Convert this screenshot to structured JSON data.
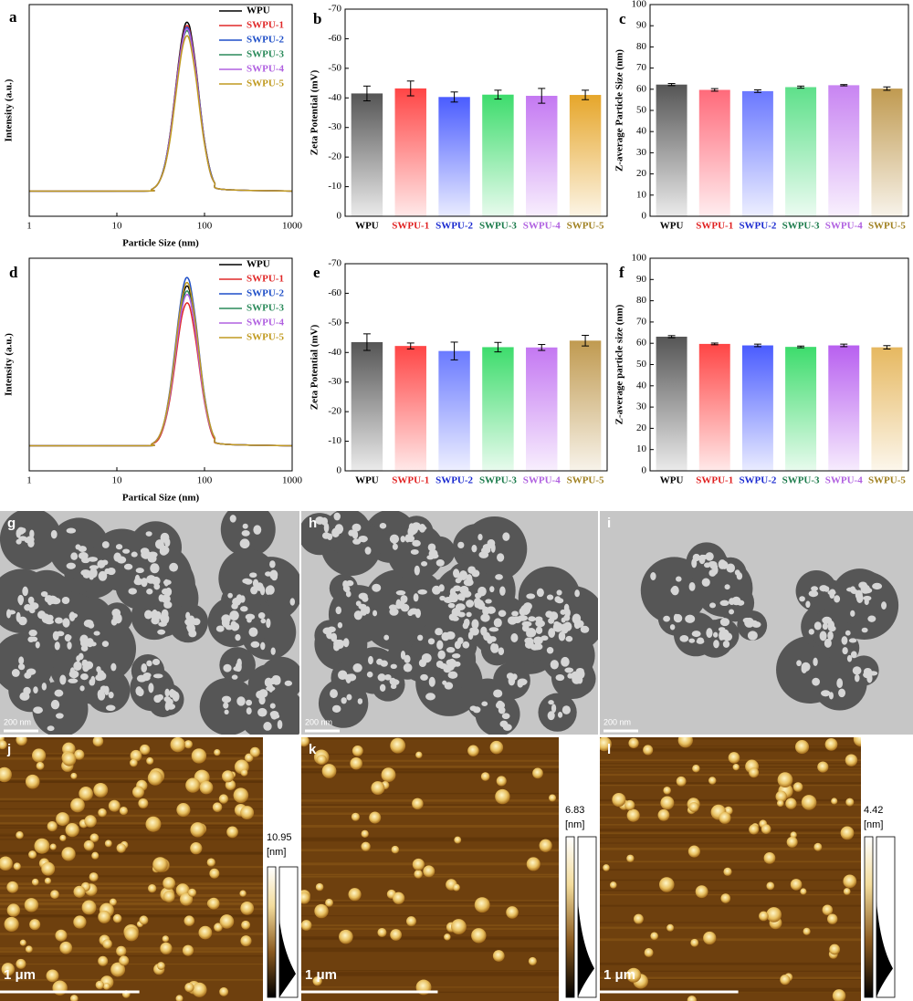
{
  "chart_data": [
    {
      "type": "line",
      "panel": "a",
      "xlabel": "Particle Size (nm)",
      "ylabel": "Intensity (a.u.)",
      "xscale": "log",
      "xlim": [
        1,
        1000
      ],
      "xticks": [
        1,
        10,
        100,
        1000
      ],
      "ylim": [
        -0.15,
        1.11
      ],
      "x": [
        1,
        20,
        25,
        30,
        35,
        40,
        45,
        50,
        55,
        60,
        65,
        70,
        80,
        90,
        100,
        115,
        130,
        160,
        1000
      ],
      "series": [
        {
          "name": "WPU",
          "color": "#000000",
          "values": [
            0,
            0,
            0.01,
            0.05,
            0.15,
            0.32,
            0.53,
            0.74,
            0.9,
            0.99,
            1,
            0.94,
            0.73,
            0.49,
            0.3,
            0.13,
            0.05,
            0.01,
            0
          ]
        },
        {
          "name": "SWPU-1",
          "color": "#e02828",
          "values": [
            0,
            0,
            0.01,
            0.05,
            0.15,
            0.31,
            0.52,
            0.73,
            0.88,
            0.97,
            0.98,
            0.92,
            0.72,
            0.48,
            0.29,
            0.13,
            0.05,
            0.01,
            0
          ]
        },
        {
          "name": "SWPU-2",
          "color": "#1f4fc8",
          "values": [
            0,
            0,
            0.01,
            0.05,
            0.15,
            0.31,
            0.51,
            0.72,
            0.87,
            0.96,
            0.97,
            0.91,
            0.71,
            0.48,
            0.29,
            0.13,
            0.05,
            0.01,
            0
          ]
        },
        {
          "name": "SWPU-3",
          "color": "#2a8a5a",
          "values": [
            0,
            0,
            0.01,
            0.05,
            0.14,
            0.3,
            0.5,
            0.7,
            0.86,
            0.94,
            0.95,
            0.89,
            0.69,
            0.47,
            0.29,
            0.12,
            0.05,
            0.01,
            0
          ]
        },
        {
          "name": "SWPU-4",
          "color": "#b060e0",
          "values": [
            0,
            0,
            0.01,
            0.05,
            0.14,
            0.31,
            0.51,
            0.71,
            0.86,
            0.95,
            0.96,
            0.9,
            0.7,
            0.47,
            0.29,
            0.12,
            0.05,
            0.01,
            0
          ]
        },
        {
          "name": "SWPU-5",
          "color": "#c09a20",
          "values": [
            0,
            0,
            0.01,
            0.05,
            0.14,
            0.29,
            0.49,
            0.68,
            0.83,
            0.91,
            0.92,
            0.86,
            0.67,
            0.45,
            0.28,
            0.12,
            0.05,
            0.01,
            0
          ]
        }
      ]
    },
    {
      "type": "bar",
      "panel": "b",
      "ylabel": "Zeta Potential (mV)",
      "categories": [
        "WPU",
        "SWPU-1",
        "SWPU-2",
        "SWPU-3",
        "SWPU-4",
        "SWPU-5"
      ],
      "values": [
        -41.5,
        -43.2,
        -40.3,
        -41.1,
        -40.7,
        -41.0
      ],
      "errors": [
        2.5,
        2.5,
        1.7,
        1.5,
        2.5,
        1.6
      ],
      "colors": [
        "#555555",
        "#ff4545",
        "#4a5cff",
        "#3ddc6c",
        "#c478f2",
        "#e6a62a"
      ],
      "label_colors": [
        "#000000",
        "#e02020",
        "#1a2ad0",
        "#1a7a4a",
        "#b060e0",
        "#a08020"
      ],
      "ylim": [
        0,
        -70
      ],
      "yticks": [
        0,
        -10,
        -20,
        -30,
        -40,
        -50,
        -60,
        -70
      ]
    },
    {
      "type": "bar",
      "panel": "c",
      "ylabel": "Z-average Particle Size (nm)",
      "categories": [
        "WPU",
        "SWPU-1",
        "SWPU-2",
        "SWPU-3",
        "SWPU-4",
        "SWPU-5"
      ],
      "values": [
        62.2,
        59.7,
        59.1,
        61.0,
        61.9,
        60.3
      ],
      "errors": [
        0.5,
        0.6,
        0.6,
        0.5,
        0.3,
        0.8
      ],
      "colors": [
        "#555555",
        "#ff6a7a",
        "#6a78ff",
        "#5ee08a",
        "#c884f2",
        "#c09a50"
      ],
      "label_colors": [
        "#000000",
        "#e02020",
        "#1a2ad0",
        "#1a7a4a",
        "#b060e0",
        "#a08020"
      ],
      "ylim": [
        0,
        100
      ],
      "yticks": [
        0,
        10,
        20,
        30,
        40,
        50,
        60,
        70,
        80,
        90,
        100
      ]
    },
    {
      "type": "line",
      "panel": "d",
      "xlabel": "Partical Size (nm)",
      "ylabel": "Intensity (a.u.)",
      "xscale": "log",
      "xlim": [
        1,
        1000
      ],
      "xticks": [
        1,
        10,
        100,
        1000
      ],
      "ylim": [
        -0.15,
        1.12
      ],
      "x": [
        1,
        20,
        25,
        30,
        35,
        40,
        45,
        50,
        55,
        60,
        65,
        70,
        80,
        90,
        100,
        115,
        130,
        160,
        1000
      ],
      "series": [
        {
          "name": "WPU",
          "color": "#000000",
          "values": [
            0,
            0,
            0.01,
            0.05,
            0.14,
            0.3,
            0.5,
            0.7,
            0.86,
            0.94,
            0.95,
            0.89,
            0.69,
            0.47,
            0.29,
            0.12,
            0.05,
            0.01,
            0
          ]
        },
        {
          "name": "SWPU-1",
          "color": "#e02828",
          "values": [
            0,
            0,
            0.01,
            0.04,
            0.13,
            0.27,
            0.45,
            0.63,
            0.77,
            0.84,
            0.85,
            0.8,
            0.62,
            0.42,
            0.26,
            0.11,
            0.04,
            0.01,
            0
          ]
        },
        {
          "name": "SWPU-2",
          "color": "#1f4fc8",
          "values": [
            0,
            0,
            0.01,
            0.05,
            0.15,
            0.32,
            0.53,
            0.74,
            0.9,
            0.99,
            1,
            0.94,
            0.73,
            0.49,
            0.3,
            0.13,
            0.05,
            0.01,
            0
          ]
        },
        {
          "name": "SWPU-3",
          "color": "#2a8a5a",
          "values": [
            0,
            0,
            0.01,
            0.05,
            0.14,
            0.29,
            0.49,
            0.68,
            0.83,
            0.91,
            0.92,
            0.86,
            0.67,
            0.45,
            0.28,
            0.12,
            0.05,
            0.01,
            0
          ]
        },
        {
          "name": "SWPU-4",
          "color": "#b060e0",
          "values": [
            0,
            0,
            0.01,
            0.05,
            0.14,
            0.29,
            0.48,
            0.67,
            0.81,
            0.89,
            0.9,
            0.85,
            0.66,
            0.44,
            0.27,
            0.12,
            0.05,
            0.01,
            0
          ]
        },
        {
          "name": "SWPU-5",
          "color": "#c09a20",
          "values": [
            0,
            0,
            0.01,
            0.05,
            0.15,
            0.31,
            0.51,
            0.72,
            0.87,
            0.96,
            0.97,
            0.91,
            0.71,
            0.48,
            0.29,
            0.13,
            0.05,
            0.01,
            0
          ]
        }
      ]
    },
    {
      "type": "bar",
      "panel": "e",
      "ylabel": "Zeta Potential (mV)",
      "categories": [
        "WPU",
        "SWPU-1",
        "SWPU-2",
        "SWPU-3",
        "SWPU-4",
        "SWPU-5"
      ],
      "values": [
        -43.5,
        -42.2,
        -40.5,
        -41.8,
        -41.7,
        -44.0
      ],
      "errors": [
        2.8,
        1.0,
        3.0,
        1.6,
        1.0,
        1.8
      ],
      "colors": [
        "#555555",
        "#ff4545",
        "#6a7aff",
        "#3ddc6c",
        "#c478f2",
        "#c09a50"
      ],
      "label_colors": [
        "#000000",
        "#e02020",
        "#1a2ad0",
        "#1a7a4a",
        "#b060e0",
        "#a08020"
      ],
      "ylim": [
        0,
        -70
      ],
      "yticks": [
        0,
        -10,
        -20,
        -30,
        -40,
        -50,
        -60,
        -70
      ]
    },
    {
      "type": "bar",
      "panel": "f",
      "ylabel": "Z-average particle size (nm)",
      "categories": [
        "WPU",
        "SWPU-1",
        "SWPU-2",
        "SWPU-3",
        "SWPU-4",
        "SWPU-5"
      ],
      "values": [
        63.1,
        59.7,
        59.0,
        58.3,
        59.0,
        58.1
      ],
      "errors": [
        0.5,
        0.4,
        0.6,
        0.4,
        0.6,
        0.8
      ],
      "colors": [
        "#555555",
        "#ff4545",
        "#4a5cff",
        "#3ddc6c",
        "#b860f0",
        "#e6b860"
      ],
      "label_colors": [
        "#000000",
        "#e02020",
        "#1a2ad0",
        "#1a7a4a",
        "#b060e0",
        "#a08020"
      ],
      "ylim": [
        0,
        100
      ],
      "yticks": [
        0,
        10,
        20,
        30,
        40,
        50,
        60,
        70,
        80,
        90,
        100
      ]
    }
  ],
  "images": [
    {
      "panel": "g",
      "scale_bar": "200 nm"
    },
    {
      "panel": "h",
      "scale_bar": "200 nm"
    },
    {
      "panel": "i",
      "scale_bar": "200 nm"
    },
    {
      "panel": "j",
      "scale_bar": "1 μm",
      "max": 10.95,
      "unit": "[nm]"
    },
    {
      "panel": "k",
      "scale_bar": "1 μm",
      "max": 6.83,
      "unit": "[nm]"
    },
    {
      "panel": "l",
      "scale_bar": "1 μm",
      "max": 4.42,
      "unit": "[nm]"
    }
  ]
}
